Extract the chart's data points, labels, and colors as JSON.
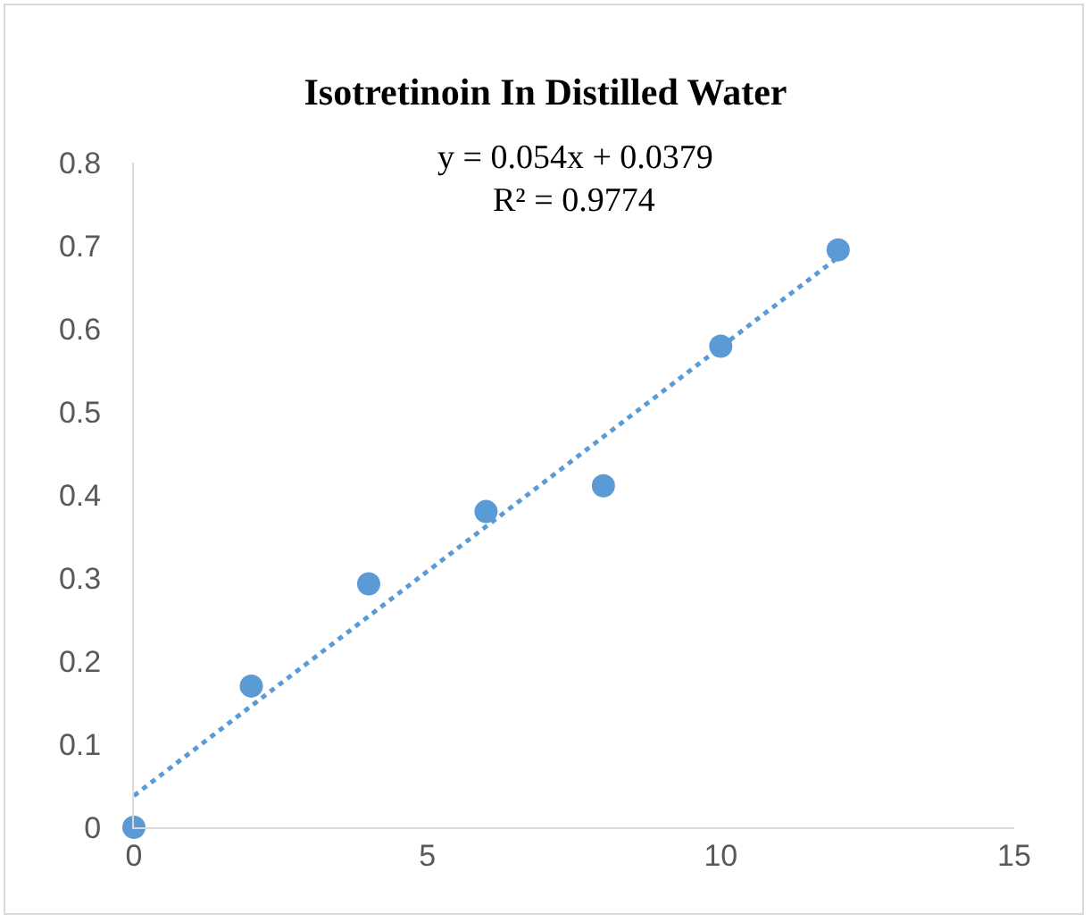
{
  "chart_data": {
    "type": "scatter",
    "title": "Isotretinoin In Distilled Water",
    "x": [
      0,
      2,
      4,
      6,
      8,
      10,
      12
    ],
    "series": [
      {
        "color": "#5b9bd5",
        "marker": "circle",
        "values": [
          0,
          0.17,
          0.293,
          0.38,
          0.411,
          0.579,
          0.695
        ]
      },
      {
        "type": "line",
        "color": "#5b9bd5",
        "line_style": "dotted",
        "marker": "none",
        "x": [
          0,
          12
        ],
        "values": [
          0.038,
          0.686
        ]
      }
    ],
    "annotations": [
      "y = 0.054x + 0.0379",
      "R² = 0.9774"
    ],
    "xlim": [
      0,
      15
    ],
    "xticks": [
      0,
      5,
      10,
      15
    ],
    "ylim": [
      0,
      0.8
    ],
    "yticks": [
      0,
      0.1,
      0.2,
      0.3,
      0.4,
      0.5,
      0.6,
      0.7,
      0.8
    ],
    "grid": false
  }
}
